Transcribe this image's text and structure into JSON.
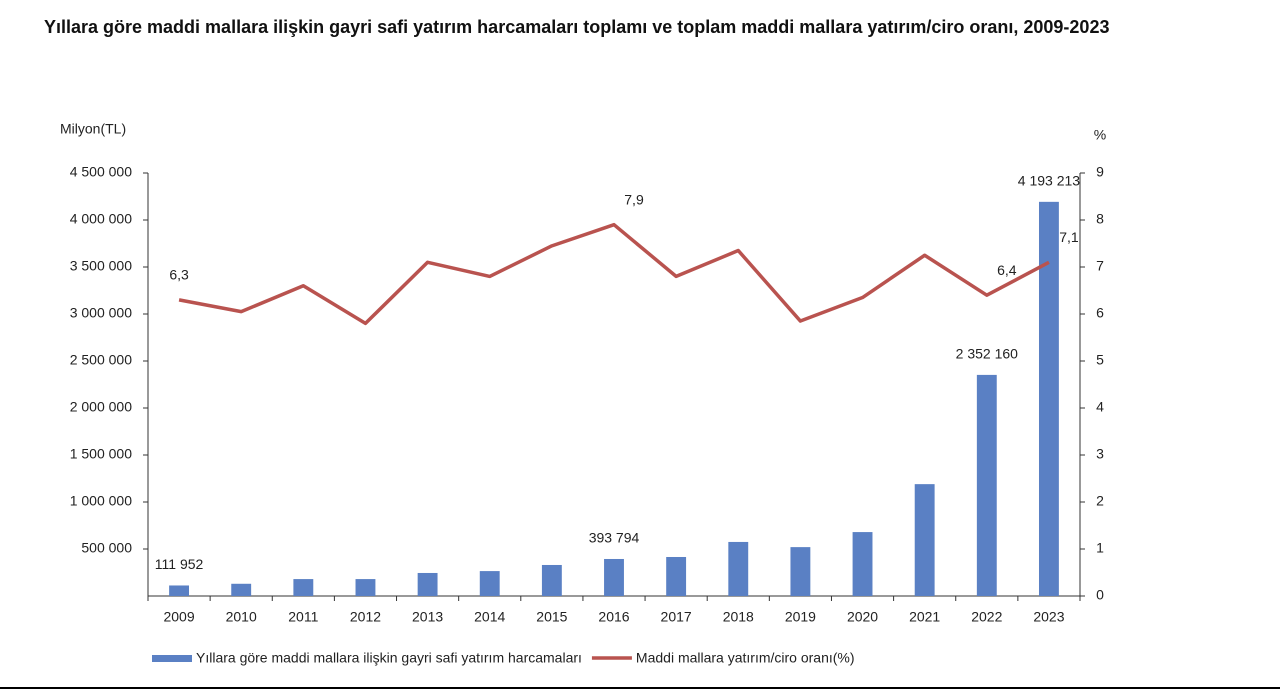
{
  "chart_data": {
    "type": "bar",
    "title": "Yıllara göre maddi mallara ilişkin gayri safi yatırım harcamaları toplamı ve toplam maddi mallara yatırım/ciro oranı, 2009-2023",
    "y_label": "Milyon(TL)",
    "y2_label": "%",
    "categories": [
      "2009",
      "2010",
      "2011",
      "2012",
      "2013",
      "2014",
      "2015",
      "2016",
      "2017",
      "2018",
      "2019",
      "2020",
      "2021",
      "2022",
      "2023"
    ],
    "series": [
      {
        "name": "Yıllara göre maddi mallara ilişkin gayri safi yatırım harcamaları",
        "type": "bar",
        "axis": "y",
        "color": "#5a80c4",
        "values": [
          111952,
          130000,
          180000,
          180000,
          245000,
          265000,
          330000,
          393794,
          415000,
          575000,
          520000,
          680000,
          1190000,
          2352160,
          4193213
        ],
        "value_labels": [
          "111 952",
          null,
          null,
          null,
          null,
          null,
          null,
          "393 794",
          null,
          null,
          null,
          null,
          null,
          "2 352 160",
          "4 193 213"
        ]
      },
      {
        "name": "Maddi mallara yatırım/ciro oranı(%)",
        "type": "line",
        "axis": "y2",
        "color": "#b9534f",
        "values": [
          6.3,
          6.05,
          6.6,
          5.8,
          7.1,
          6.8,
          7.45,
          7.9,
          6.8,
          7.35,
          5.85,
          6.35,
          7.25,
          6.4,
          7.1
        ],
        "value_labels": [
          "6,3",
          null,
          null,
          null,
          null,
          null,
          null,
          "7,9",
          null,
          null,
          null,
          null,
          null,
          "6,4",
          "7,1"
        ]
      }
    ],
    "ylim": [
      0,
      4500000
    ],
    "yticks": [
      {
        "value": 500000,
        "label": "500 000"
      },
      {
        "value": 1000000,
        "label": "1 000 000"
      },
      {
        "value": 1500000,
        "label": "1 500 000"
      },
      {
        "value": 2000000,
        "label": "2 000 000"
      },
      {
        "value": 2500000,
        "label": "2 500 000"
      },
      {
        "value": 3000000,
        "label": "3 000 000"
      },
      {
        "value": 3500000,
        "label": "3 500 000"
      },
      {
        "value": 4000000,
        "label": "4 000 000"
      },
      {
        "value": 4500000,
        "label": "4 500 000"
      }
    ],
    "y2lim": [
      0,
      9
    ],
    "y2ticks": [
      0,
      1,
      2,
      3,
      4,
      5,
      6,
      7,
      8,
      9
    ],
    "grid": false
  }
}
